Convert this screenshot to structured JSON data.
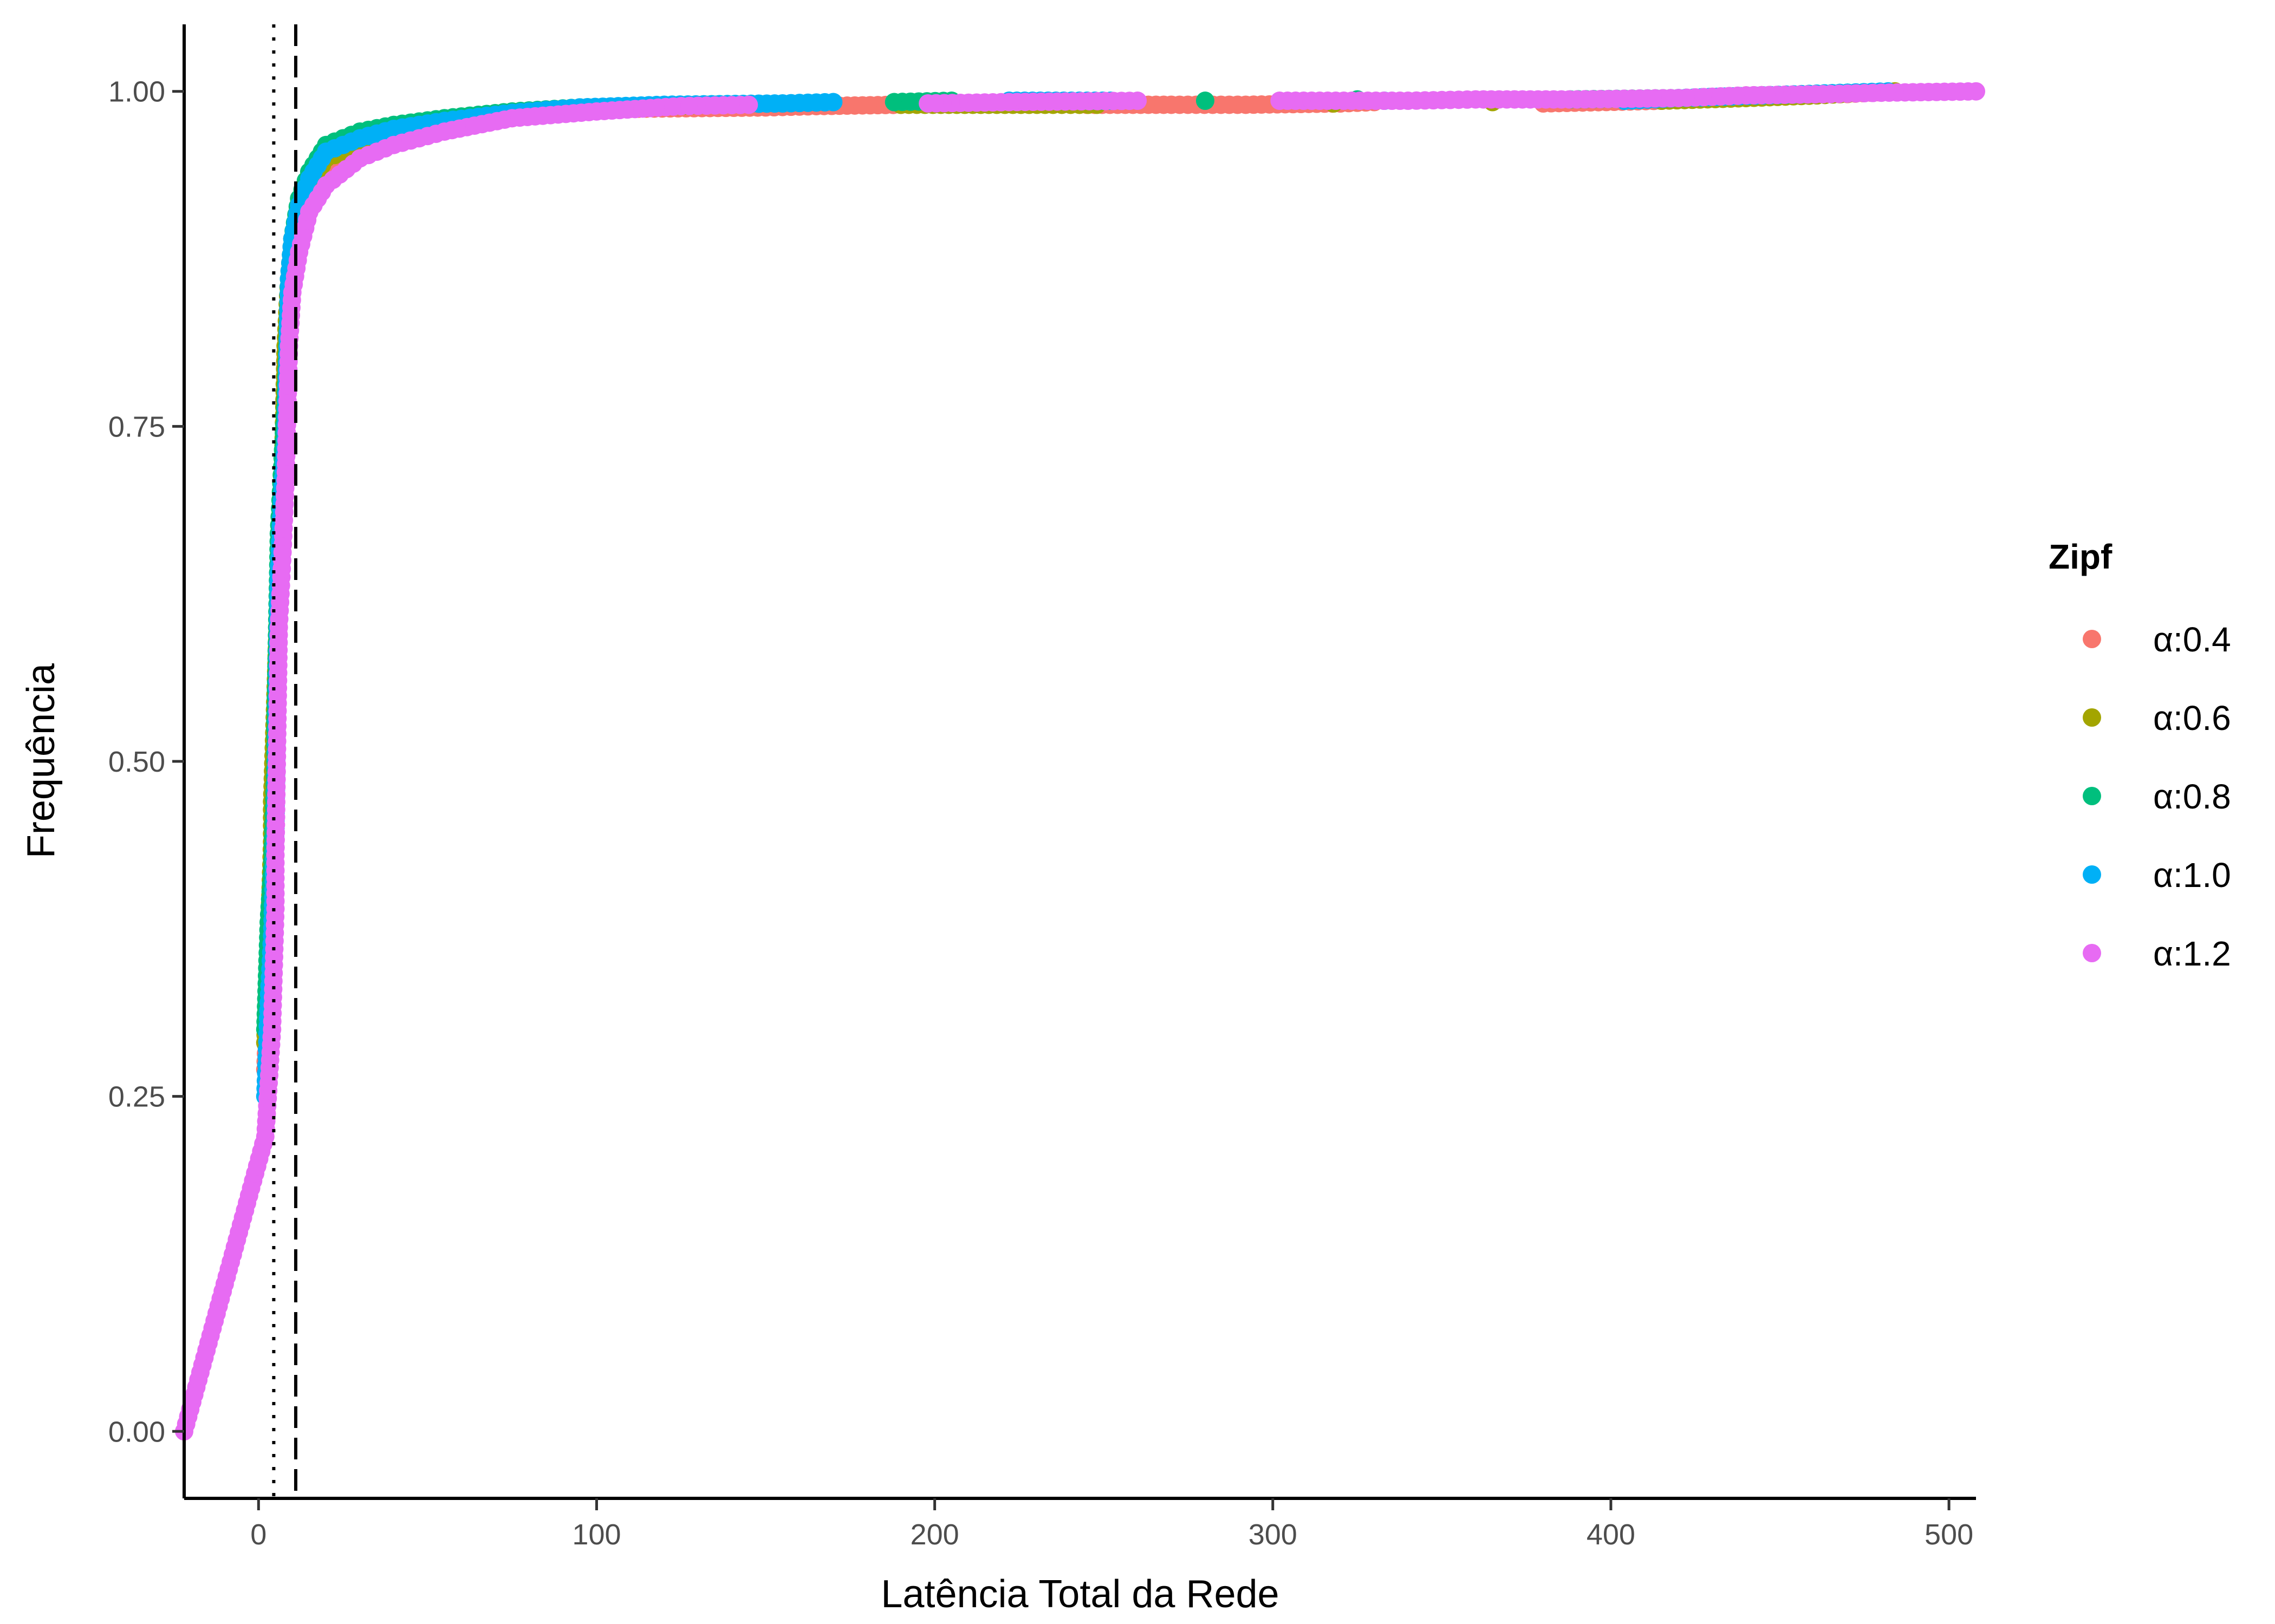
{
  "chart_data": {
    "type": "scatter",
    "title": "",
    "xlabel": "Latência Total da Rede",
    "ylabel": "Frequência",
    "xlim": [
      -22,
      508
    ],
    "ylim": [
      -0.05,
      1.05
    ],
    "x_ticks": [
      0,
      100,
      200,
      300,
      400,
      500
    ],
    "x_tick_labels": [
      "0",
      "100",
      "200",
      "300",
      "400",
      "500"
    ],
    "y_ticks": [
      0.0,
      0.25,
      0.5,
      0.75,
      1.0
    ],
    "y_tick_labels": [
      "0.00",
      "0.25",
      "0.50",
      "0.75",
      "1.00"
    ],
    "grid": false,
    "legend": {
      "title": "Zipf",
      "position": "right"
    },
    "reference_lines": [
      {
        "x": 4.5,
        "style": "dotted",
        "color": "#000000"
      },
      {
        "x": 11,
        "style": "dashed",
        "color": "#000000"
      }
    ],
    "series": [
      {
        "name": "α:0.4",
        "color": "#F8766D",
        "points": [
          [
            2,
            0.27
          ],
          [
            3,
            0.33
          ],
          [
            4,
            0.38
          ],
          [
            4,
            0.42
          ],
          [
            6,
            0.62
          ],
          [
            7,
            0.67
          ],
          [
            8,
            0.8
          ],
          [
            9,
            0.85
          ],
          [
            10,
            0.88
          ],
          [
            12,
            0.9
          ],
          [
            15,
            0.92
          ],
          [
            20,
            0.94
          ],
          [
            30,
            0.955
          ],
          [
            40,
            0.965
          ],
          [
            50,
            0.97
          ],
          [
            60,
            0.975
          ],
          [
            75,
            0.98
          ],
          [
            90,
            0.985
          ],
          [
            110,
            0.987
          ],
          [
            150,
            0.988
          ],
          [
            165,
            0.989
          ],
          [
            190,
            0.99
          ],
          [
            245,
            0.99
          ],
          [
            270,
            0.99
          ],
          [
            292,
            0.99
          ],
          [
            320,
            0.991
          ],
          [
            330,
            0.992
          ],
          [
            380,
            0.991
          ],
          [
            415,
            0.993
          ],
          [
            425,
            0.995
          ],
          [
            440,
            0.997
          ],
          [
            470,
            0.998
          ],
          [
            484,
            1.0
          ]
        ]
      },
      {
        "name": "α:0.6",
        "color": "#A3A500",
        "points": [
          [
            2,
            0.29
          ],
          [
            3,
            0.36
          ],
          [
            4,
            0.44
          ],
          [
            4,
            0.47
          ],
          [
            6,
            0.63
          ],
          [
            7,
            0.69
          ],
          [
            8,
            0.81
          ],
          [
            9,
            0.86
          ],
          [
            10,
            0.89
          ],
          [
            12,
            0.91
          ],
          [
            15,
            0.93
          ],
          [
            20,
            0.95
          ],
          [
            30,
            0.96
          ],
          [
            40,
            0.97
          ],
          [
            55,
            0.975
          ],
          [
            70,
            0.98
          ],
          [
            90,
            0.985
          ],
          [
            110,
            0.988
          ],
          [
            135,
            0.99
          ],
          [
            190,
            0.99
          ],
          [
            216,
            0.99
          ],
          [
            235,
            0.99
          ],
          [
            248,
            0.99
          ],
          [
            318,
            0.991
          ],
          [
            365,
            0.992
          ],
          [
            415,
            0.993
          ],
          [
            440,
            0.995
          ],
          [
            461,
            0.997
          ],
          [
            475,
            0.999
          ],
          [
            484,
            1.0
          ]
        ]
      },
      {
        "name": "α:0.8",
        "color": "#00BF7D",
        "points": [
          [
            2,
            0.3
          ],
          [
            3,
            0.38
          ],
          [
            4,
            0.42
          ],
          [
            5,
            0.5
          ],
          [
            5,
            0.53
          ],
          [
            6,
            0.67
          ],
          [
            7,
            0.72
          ],
          [
            8,
            0.77
          ],
          [
            9,
            0.85
          ],
          [
            10,
            0.89
          ],
          [
            12,
            0.92
          ],
          [
            15,
            0.94
          ],
          [
            20,
            0.96
          ],
          [
            30,
            0.97
          ],
          [
            40,
            0.975
          ],
          [
            55,
            0.98
          ],
          [
            75,
            0.985
          ],
          [
            95,
            0.988
          ],
          [
            135,
            0.99
          ],
          [
            188,
            0.992
          ],
          [
            205,
            0.993
          ],
          [
            280,
            0.993
          ],
          [
            325,
            0.994
          ],
          [
            388,
            0.994
          ],
          [
            420,
            0.995
          ],
          [
            445,
            0.997
          ],
          [
            470,
            0.999
          ]
        ]
      },
      {
        "name": "α:1.0",
        "color": "#00B0F6",
        "points": [
          [
            2,
            0.25
          ],
          [
            3,
            0.32
          ],
          [
            4,
            0.37
          ],
          [
            5,
            0.45
          ],
          [
            6,
            0.64
          ],
          [
            7,
            0.7
          ],
          [
            8,
            0.74
          ],
          [
            9,
            0.86
          ],
          [
            10,
            0.89
          ],
          [
            12,
            0.915
          ],
          [
            15,
            0.935
          ],
          [
            20,
            0.955
          ],
          [
            30,
            0.965
          ],
          [
            40,
            0.972
          ],
          [
            55,
            0.978
          ],
          [
            75,
            0.984
          ],
          [
            95,
            0.988
          ],
          [
            120,
            0.99
          ],
          [
            155,
            0.991
          ],
          [
            170,
            0.992
          ],
          [
            222,
            0.993
          ],
          [
            252,
            0.993
          ],
          [
            333,
            0.993
          ],
          [
            404,
            0.993
          ],
          [
            420,
            0.995
          ],
          [
            445,
            0.997
          ],
          [
            470,
            0.999
          ],
          [
            482,
            1.0
          ]
        ]
      },
      {
        "name": "α:1.2",
        "color": "#E76BF3",
        "points": [
          [
            -22,
            0.0
          ],
          [
            2,
            0.22
          ],
          [
            3,
            0.26
          ],
          [
            4,
            0.3
          ],
          [
            5,
            0.39
          ],
          [
            5,
            0.43
          ],
          [
            6,
            0.6
          ],
          [
            7,
            0.65
          ],
          [
            8,
            0.71
          ],
          [
            9,
            0.81
          ],
          [
            10,
            0.85
          ],
          [
            12,
            0.88
          ],
          [
            15,
            0.91
          ],
          [
            20,
            0.93
          ],
          [
            30,
            0.95
          ],
          [
            40,
            0.96
          ],
          [
            55,
            0.97
          ],
          [
            75,
            0.98
          ],
          [
            100,
            0.985
          ],
          [
            125,
            0.989
          ],
          [
            145,
            0.99
          ],
          [
            198,
            0.991
          ],
          [
            222,
            0.992
          ],
          [
            260,
            0.993
          ],
          [
            302,
            0.993
          ],
          [
            340,
            0.993
          ],
          [
            360,
            0.994
          ],
          [
            390,
            0.994
          ],
          [
            420,
            0.995
          ],
          [
            440,
            0.997
          ],
          [
            465,
            0.998
          ],
          [
            480,
            0.999
          ],
          [
            508,
            1.0
          ]
        ]
      }
    ]
  }
}
